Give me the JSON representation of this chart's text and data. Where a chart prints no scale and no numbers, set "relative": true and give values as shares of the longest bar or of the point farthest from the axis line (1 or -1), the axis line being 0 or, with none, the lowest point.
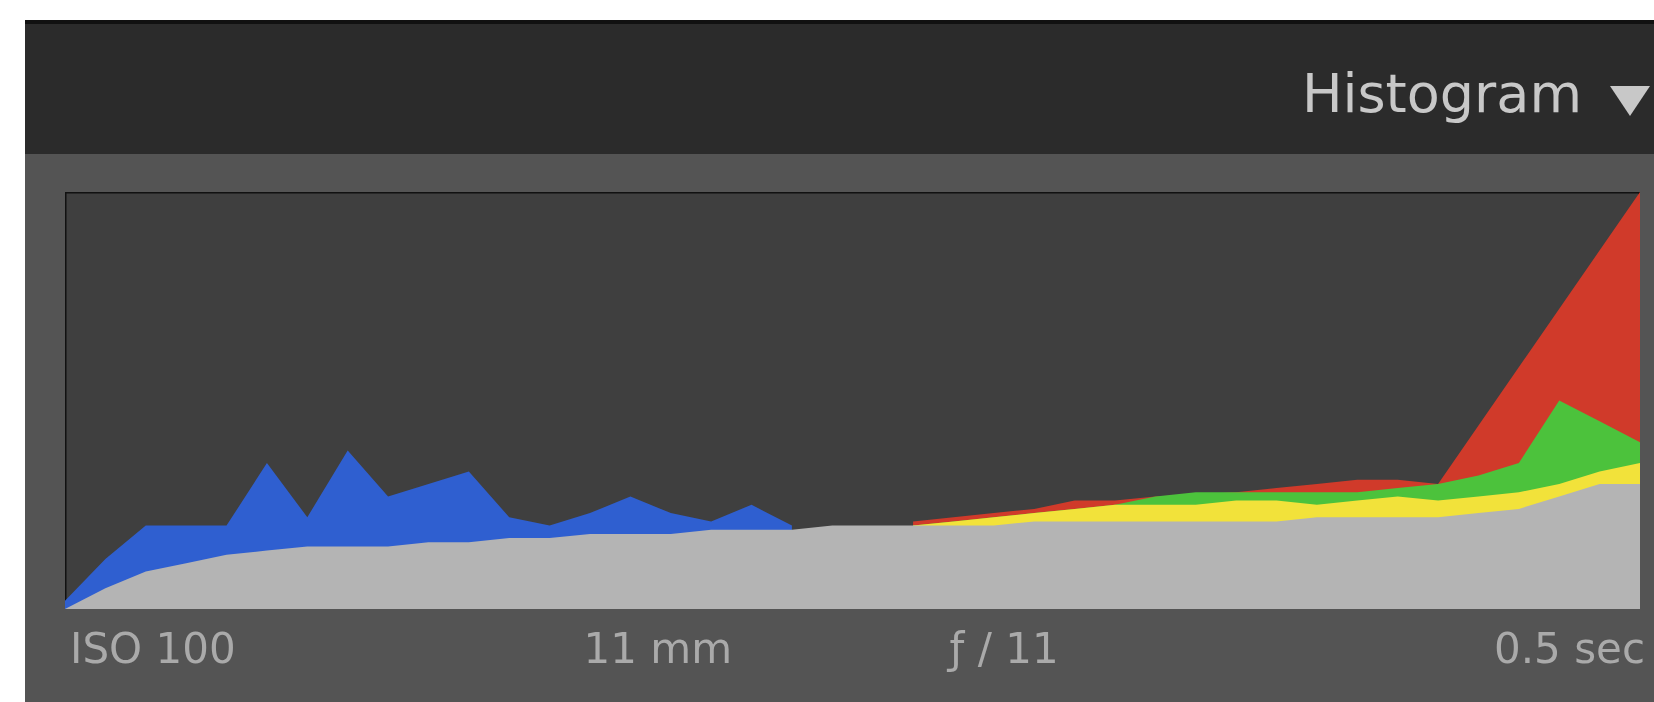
{
  "chart_data": {
    "type": "area",
    "title": "Histogram",
    "relative": true,
    "categories": [
      null,
      null,
      null,
      null,
      null,
      null,
      null,
      null,
      null,
      null,
      null,
      null,
      null,
      null,
      null,
      null,
      null,
      null,
      null,
      null,
      null,
      null,
      null,
      null,
      null,
      null,
      null,
      null,
      null,
      null,
      null,
      null,
      null,
      null,
      null,
      null,
      null,
      null,
      null,
      null
    ],
    "series": [
      {
        "color": "#d03a2a",
        "values": [
          null,
          null,
          null,
          null,
          null,
          null,
          null,
          null,
          null,
          null,
          null,
          null,
          null,
          null,
          null,
          null,
          null,
          null,
          null,
          null,
          null,
          0.21,
          0.22,
          0.23,
          0.24,
          0.26,
          0.26,
          0.27,
          null,
          0.28,
          0.29,
          0.3,
          0.31,
          0.31,
          0.3,
          null,
          null,
          null,
          null,
          1.0
        ]
      },
      {
        "color": "#4cc23c",
        "values": [
          null,
          null,
          null,
          null,
          null,
          null,
          null,
          null,
          null,
          null,
          null,
          null,
          null,
          null,
          null,
          null,
          null,
          null,
          null,
          null,
          null,
          0.2,
          0.21,
          0.22,
          0.23,
          0.24,
          0.25,
          0.27,
          0.28,
          0.28,
          0.28,
          0.28,
          0.28,
          0.29,
          0.3,
          0.32,
          0.35,
          0.5,
          0.45,
          0.4
        ]
      },
      {
        "color": "#2f5fd0",
        "values": [
          0.02,
          0.12,
          0.2,
          0.2,
          0.2,
          0.35,
          0.22,
          0.38,
          0.27,
          0.3,
          0.33,
          0.22,
          0.2,
          0.23,
          0.27,
          0.23,
          0.21,
          0.25,
          0.2,
          null,
          null,
          null,
          null,
          null,
          null,
          null,
          null,
          null,
          null,
          null,
          null,
          null,
          null,
          null,
          null,
          null,
          null,
          null,
          null,
          null
        ]
      },
      {
        "color": "#f2e23a",
        "values": [
          null,
          null,
          null,
          null,
          null,
          null,
          null,
          null,
          null,
          null,
          null,
          null,
          null,
          null,
          null,
          null,
          null,
          null,
          null,
          null,
          null,
          0.2,
          0.21,
          0.22,
          0.23,
          0.24,
          0.25,
          0.25,
          0.25,
          0.26,
          0.26,
          0.25,
          0.26,
          0.27,
          0.26,
          0.27,
          0.28,
          0.3,
          0.33,
          0.35
        ]
      },
      {
        "color": "#b4b4b4",
        "values": [
          0.0,
          0.05,
          0.09,
          0.11,
          0.13,
          0.14,
          0.15,
          0.15,
          0.15,
          0.16,
          0.16,
          0.17,
          0.17,
          0.18,
          0.18,
          0.18,
          0.19,
          0.19,
          0.19,
          0.2,
          0.2,
          0.2,
          0.2,
          0.2,
          0.21,
          0.21,
          0.21,
          0.21,
          0.21,
          0.21,
          0.21,
          0.22,
          0.22,
          0.22,
          0.22,
          0.23,
          0.24,
          0.27,
          0.3,
          0.3
        ]
      }
    ],
    "annotations": [
      "ISO 100",
      "11 mm",
      "ƒ / 11",
      "0.5 sec"
    ]
  }
}
